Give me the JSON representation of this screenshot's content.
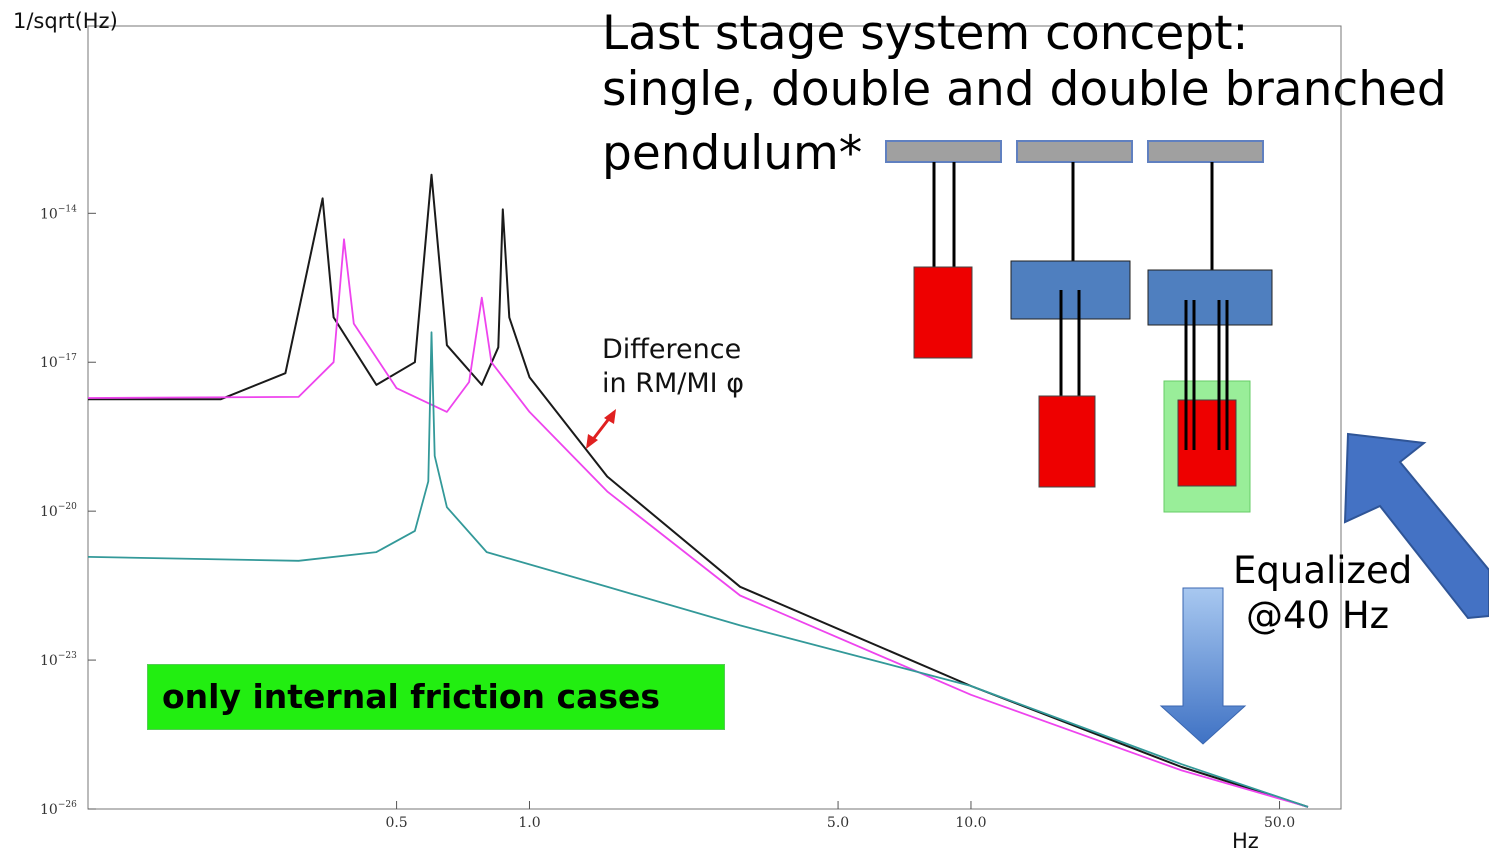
{
  "chart_data": {
    "type": "line",
    "title": "Last stage system concept:",
    "subtitle_lines": [
      "single, double and double branched",
      "pendulum*"
    ],
    "ylabel": "1/sqrt(Hz)",
    "xlabel": "Hz",
    "xscale": "log",
    "yscale": "log",
    "xlim": [
      0.1,
      58
    ],
    "ylim": [
      1e-26,
      1e-13
    ],
    "xticks": [
      {
        "value": 0.5,
        "label": "0.5"
      },
      {
        "value": 1.0,
        "label": "1.0"
      },
      {
        "value": 5.0,
        "label": "5.0"
      },
      {
        "value": 10.0,
        "label": "10.0"
      },
      {
        "value": 50.0,
        "label": "50.0"
      }
    ],
    "yticks": [
      {
        "exp": -14,
        "label": "10"
      },
      {
        "exp": -17,
        "label": "10"
      },
      {
        "exp": -20,
        "label": "10"
      },
      {
        "exp": -23,
        "label": "10"
      },
      {
        "exp": -26,
        "label": "10"
      }
    ],
    "series": [
      {
        "color": "#1a1a1a",
        "points": [
          [
            0.1,
            1.8e-18
          ],
          [
            0.2,
            1.8e-18
          ],
          [
            0.28,
            6e-18
          ],
          [
            0.34,
            2e-14
          ],
          [
            0.36,
            8e-17
          ],
          [
            0.45,
            3.5e-18
          ],
          [
            0.55,
            1e-17
          ],
          [
            0.6,
            6e-14
          ],
          [
            0.65,
            2.2e-17
          ],
          [
            0.78,
            3.5e-18
          ],
          [
            0.85,
            2e-17
          ],
          [
            0.87,
            1.2e-14
          ],
          [
            0.9,
            8e-17
          ],
          [
            1.0,
            5e-18
          ],
          [
            1.5,
            5e-20
          ],
          [
            3.0,
            3e-22
          ],
          [
            10.0,
            3e-24
          ],
          [
            30.0,
            7e-26
          ],
          [
            58.0,
            1.1e-26
          ]
        ]
      },
      {
        "color": "#ee44ee",
        "points": [
          [
            0.1,
            1.9e-18
          ],
          [
            0.3,
            2e-18
          ],
          [
            0.36,
            1e-17
          ],
          [
            0.38,
            3e-15
          ],
          [
            0.4,
            6e-17
          ],
          [
            0.5,
            3e-18
          ],
          [
            0.65,
            1e-18
          ],
          [
            0.73,
            4e-18
          ],
          [
            0.78,
            2e-16
          ],
          [
            0.82,
            1e-17
          ],
          [
            1.0,
            1e-18
          ],
          [
            1.5,
            2.5e-20
          ],
          [
            3.0,
            2e-22
          ],
          [
            10.0,
            2e-24
          ],
          [
            30.0,
            6e-26
          ],
          [
            58.0,
            1.1e-26
          ]
        ]
      },
      {
        "color": "#339999",
        "points": [
          [
            0.1,
            1.2e-21
          ],
          [
            0.3,
            1e-21
          ],
          [
            0.45,
            1.5e-21
          ],
          [
            0.55,
            4e-21
          ],
          [
            0.59,
            4e-20
          ],
          [
            0.6,
            4e-17
          ],
          [
            0.61,
            1.3e-19
          ],
          [
            0.65,
            1.2e-20
          ],
          [
            0.8,
            1.5e-21
          ],
          [
            1.5,
            3e-22
          ],
          [
            3.0,
            5e-23
          ],
          [
            10.0,
            3e-24
          ],
          [
            30.0,
            8e-26
          ],
          [
            58.0,
            1.1e-26
          ]
        ]
      }
    ],
    "annotations": [
      "Difference",
      "in RM/MI φ",
      "only internal friction cases",
      "Equalized",
      "@40 Hz"
    ]
  },
  "colors": {
    "mass_red": "#ee0000",
    "intermediate_blue": "#4f7fbf",
    "highlight_green": "#99ee99",
    "arrow_blue": "#4472c4"
  }
}
